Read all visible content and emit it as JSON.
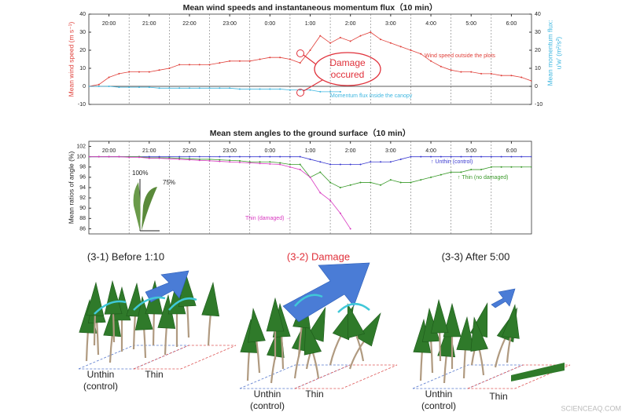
{
  "chart_data": [
    {
      "type": "line",
      "title": "Mean wind speeds and instantaneous momentum flux（10 min）",
      "y_label": "Mean wind speed (m s⁻¹)",
      "y2_label": [
        "Mean momentum flux:",
        "u'w' (m²/s²)"
      ],
      "x": [
        19.5,
        19.75,
        20,
        20.25,
        20.5,
        20.75,
        21,
        21.25,
        21.5,
        21.75,
        22,
        22.25,
        22.5,
        22.75,
        23,
        23.25,
        23.5,
        23.75,
        24,
        24.25,
        24.5,
        24.75,
        25,
        25.25,
        25.5,
        25.75,
        26,
        26.25,
        26.5,
        26.75,
        27,
        27.25,
        27.5,
        27.75,
        28,
        28.25,
        28.5,
        28.75,
        29,
        29.25,
        29.5,
        29.75,
        30,
        30.25,
        30.5
      ],
      "xlim": [
        19.5,
        30.5
      ],
      "xticks": [
        {
          "value": 20,
          "label": "20:00"
        },
        {
          "value": 21,
          "label": "21:00"
        },
        {
          "value": 22,
          "label": "22:00"
        },
        {
          "value": 23,
          "label": "23:00"
        },
        {
          "value": 24,
          "label": "0:00"
        },
        {
          "value": 25,
          "label": "1:00"
        },
        {
          "value": 26,
          "label": "2:00"
        },
        {
          "value": 27,
          "label": "3:00"
        },
        {
          "value": 28,
          "label": "4:00"
        },
        {
          "value": 29,
          "label": "5:00"
        },
        {
          "value": 30,
          "label": "6:00"
        }
      ],
      "ylim": [
        -10,
        40
      ],
      "yticks": [
        -10,
        0,
        10,
        20,
        30,
        40
      ],
      "y2lim": [
        -10,
        40
      ],
      "y2ticks": [
        -10,
        0,
        10,
        20,
        30,
        40
      ],
      "series": [
        {
          "name": "Wind speed outside the plots",
          "color": "#e0403a",
          "values": [
            0,
            1,
            5,
            7,
            8,
            8,
            8,
            9,
            10,
            12,
            12,
            12,
            12,
            13,
            14,
            14,
            14,
            15,
            16,
            16,
            15,
            13,
            20,
            28,
            24,
            27,
            25,
            28,
            30,
            26,
            24,
            22,
            20,
            18,
            14,
            11,
            9,
            8,
            8,
            7,
            7,
            6,
            6,
            5,
            3
          ]
        },
        {
          "name": "Momentum flux inside the canopy",
          "color": "#3fb7e0",
          "axis": "y2",
          "values": [
            0,
            0,
            0,
            -0.5,
            -0.5,
            -0.5,
            -0.5,
            -1,
            -1,
            -1,
            -1,
            -1,
            -1,
            -1,
            -1,
            -1.5,
            -1.5,
            -1.5,
            -1.5,
            -1.5,
            -2,
            -2,
            -2,
            -3,
            -3,
            -3,
            null,
            null,
            null,
            null,
            null,
            null,
            null,
            null,
            null,
            null,
            null,
            null,
            null,
            null,
            null,
            null,
            null,
            null,
            null
          ]
        }
      ],
      "annotations": [
        "Damage",
        "occured"
      ]
    },
    {
      "type": "line",
      "title": "Mean stem angles to the ground surface（10 min）",
      "y_label": "Mean ratios of angle (%)",
      "x": [
        19.5,
        19.75,
        20,
        20.25,
        20.5,
        20.75,
        21,
        21.25,
        21.5,
        21.75,
        22,
        22.25,
        22.5,
        22.75,
        23,
        23.25,
        23.5,
        23.75,
        24,
        24.25,
        24.5,
        24.75,
        25,
        25.25,
        25.5,
        25.75,
        26,
        26.25,
        26.5,
        26.75,
        27,
        27.25,
        27.5,
        27.75,
        28,
        28.25,
        28.5,
        28.75,
        29,
        29.25,
        29.5,
        29.75,
        30,
        30.25,
        30.5
      ],
      "xlim": [
        19.5,
        30.5
      ],
      "xticks": [
        {
          "value": 20,
          "label": "20:00"
        },
        {
          "value": 21,
          "label": "21:00"
        },
        {
          "value": 22,
          "label": "22:00"
        },
        {
          "value": 23,
          "label": "23:00"
        },
        {
          "value": 24,
          "label": "0:00"
        },
        {
          "value": 25,
          "label": "1:00"
        },
        {
          "value": 26,
          "label": "2:00"
        },
        {
          "value": 27,
          "label": "3:00"
        },
        {
          "value": 28,
          "label": "4:00"
        },
        {
          "value": 29,
          "label": "5:00"
        },
        {
          "value": 30,
          "label": "6:00"
        }
      ],
      "ylim": [
        85,
        103
      ],
      "yticks": [
        86,
        88,
        90,
        92,
        94,
        96,
        98,
        100,
        102
      ],
      "series": [
        {
          "name": "↑ Unthin (control)",
          "color": "#3a3ad0",
          "values": [
            100,
            100,
            100,
            100,
            100,
            100,
            100,
            100,
            100,
            100,
            100,
            100,
            100,
            100,
            100,
            100,
            100,
            100,
            100,
            100,
            100,
            100,
            99.5,
            99,
            98.5,
            98.5,
            98.5,
            98.5,
            99,
            99,
            99,
            99.5,
            100,
            100,
            100,
            100,
            100,
            100,
            100,
            100,
            100,
            100,
            100,
            100,
            100
          ]
        },
        {
          "name": "↑ Thin (no damaged)",
          "color": "#3a9a2a",
          "values": [
            100,
            100,
            100,
            100,
            100,
            100,
            99.8,
            99.8,
            99.8,
            99.7,
            99.6,
            99.5,
            99.5,
            99.4,
            99.3,
            99.2,
            99,
            99,
            99,
            98.8,
            98.5,
            98.5,
            96,
            97,
            95,
            94,
            94.5,
            95,
            95,
            94.5,
            95.5,
            95,
            95,
            95.5,
            96,
            96.5,
            97,
            97,
            97.5,
            97.5,
            98,
            98,
            98,
            98,
            98
          ]
        },
        {
          "name": "Thin (damaged) →",
          "color": "#d838c0",
          "values": [
            100,
            100,
            100,
            100,
            99.9,
            99.9,
            99.7,
            99.7,
            99.6,
            99.5,
            99.4,
            99.3,
            99.2,
            99.1,
            99,
            98.9,
            98.8,
            98.7,
            98.6,
            98.5,
            98,
            97.5,
            96,
            93,
            91.5,
            89,
            86,
            null,
            null,
            null,
            null,
            null,
            null,
            null,
            null,
            null,
            null,
            null,
            null,
            null,
            null,
            null,
            null,
            null,
            null
          ]
        }
      ],
      "annotations": [
        "100%",
        "75%"
      ]
    }
  ],
  "panels": [
    {
      "title": "(3-1) Before 1:10",
      "labels": [
        "Unthin",
        "(control)",
        "Thin"
      ]
    },
    {
      "title": "(3-2) Damage",
      "labels": [
        "Unthin",
        "(control)",
        "Thin"
      ]
    },
    {
      "title": "(3-3) After 5:00",
      "labels": [
        "Unthin",
        "(control)",
        "Thin"
      ]
    }
  ],
  "watermark": "SCIENCEAQ.COM"
}
